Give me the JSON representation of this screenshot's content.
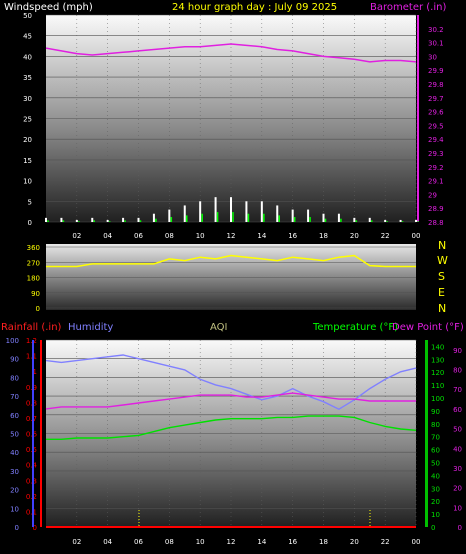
{
  "header": {
    "windspeed_label": "Windspeed (mph)",
    "title": "24 hour graph day : July 09 2025",
    "barometer_label": "Barometer (.in)"
  },
  "bottom_header": {
    "rainfall_label": "Rainfall (.in)",
    "humidity_label": "Humidity",
    "aqi_label": "AQI",
    "temperature_label": "Temperature (°F)",
    "dewpoint_label": "Dew Point (°F)"
  },
  "direction_labels": [
    "N",
    "W",
    "S",
    "E",
    "N"
  ],
  "x_ticks": [
    "02",
    "04",
    "06",
    "08",
    "10",
    "12",
    "14",
    "16",
    "18",
    "20",
    "22",
    "00"
  ],
  "colors": {
    "barometer": "#e020e0",
    "wind": "#ffffff",
    "gust": "#00ff00",
    "direction": "#ffff00",
    "humidity": "#8080ff",
    "temperature": "#00e000",
    "dewpoint": "#e020e0",
    "rainfall": "#ff0000",
    "title": "#ffff00"
  },
  "chart_data": [
    {
      "type": "line",
      "title": "24 hour graph day : July 09 2025",
      "hours": [
        0,
        1,
        2,
        3,
        4,
        5,
        6,
        7,
        8,
        9,
        10,
        11,
        12,
        13,
        14,
        15,
        16,
        17,
        18,
        19,
        20,
        21,
        22,
        23,
        24
      ],
      "windspeed": {
        "name": "Windspeed (mph)",
        "ylim": [
          0,
          50
        ],
        "ticks": [
          0,
          5,
          10,
          15,
          20,
          25,
          30,
          35,
          40,
          45,
          50
        ],
        "values": [
          1,
          1,
          0.5,
          1,
          0.5,
          1,
          1,
          2,
          3,
          4,
          5,
          6,
          6,
          5,
          5,
          4,
          3,
          3,
          2,
          2,
          1,
          1,
          0.5,
          0.5,
          0.5
        ]
      },
      "barometer": {
        "name": "Barometer (.in)",
        "ylim": [
          28.8,
          30.3
        ],
        "ticks": [
          "28.8",
          "28.9",
          "29",
          "29.1",
          "29.2",
          "29.3",
          "29.4",
          "29.5",
          "29.6",
          "29.7",
          "29.8",
          "29.9",
          "30",
          "30.1",
          "30.2"
        ],
        "values": [
          30.06,
          30.04,
          30.02,
          30.01,
          30.02,
          30.03,
          30.04,
          30.05,
          30.06,
          30.07,
          30.07,
          30.08,
          30.09,
          30.08,
          30.07,
          30.05,
          30.04,
          30.02,
          30.0,
          29.99,
          29.98,
          29.96,
          29.97,
          29.97,
          29.96
        ]
      }
    },
    {
      "type": "line",
      "name": "Wind direction",
      "ylim": [
        0,
        360
      ],
      "ticks": [
        0,
        90,
        180,
        270,
        360
      ],
      "hours": [
        0,
        1,
        2,
        3,
        4,
        5,
        6,
        7,
        8,
        9,
        10,
        11,
        12,
        13,
        14,
        15,
        16,
        17,
        18,
        19,
        20,
        21,
        22,
        23,
        24
      ],
      "values": [
        245,
        245,
        245,
        260,
        260,
        260,
        260,
        260,
        290,
        280,
        300,
        290,
        310,
        300,
        290,
        280,
        300,
        290,
        280,
        300,
        310,
        250,
        245,
        245,
        245
      ]
    },
    {
      "type": "line",
      "hours": [
        0,
        1,
        2,
        3,
        4,
        5,
        6,
        7,
        8,
        9,
        10,
        11,
        12,
        13,
        14,
        15,
        16,
        17,
        18,
        19,
        20,
        21,
        22,
        23,
        24
      ],
      "humidity": {
        "name": "Humidity",
        "ylim": [
          0,
          100
        ],
        "ticks": [
          0,
          10,
          20,
          30,
          40,
          50,
          60,
          70,
          80,
          90,
          100
        ],
        "values": [
          89,
          88,
          89,
          90,
          91,
          92,
          90,
          88,
          86,
          84,
          79,
          76,
          74,
          71,
          68,
          70,
          74,
          70,
          67,
          63,
          68,
          74,
          79,
          83,
          85
        ]
      },
      "temperature": {
        "name": "Temperature (°F)",
        "ylim": [
          0,
          145
        ],
        "ticks": [
          0,
          10,
          20,
          30,
          40,
          50,
          60,
          70,
          80,
          90,
          100,
          110,
          120,
          130,
          140
        ],
        "values": [
          68,
          68,
          69,
          69,
          69,
          70,
          71,
          74,
          77,
          79,
          81,
          83,
          84,
          84,
          84,
          85,
          85,
          86,
          86,
          86,
          85,
          81,
          78,
          76,
          75
        ]
      },
      "dewpoint": {
        "name": "Dew Point (°F)",
        "ylim": [
          0,
          95
        ],
        "ticks": [
          0,
          10,
          20,
          30,
          40,
          50,
          60,
          70,
          80,
          90
        ],
        "values": [
          60,
          61,
          61,
          61,
          61,
          62,
          63,
          64,
          65,
          66,
          67,
          67,
          67,
          66,
          66,
          67,
          68,
          67,
          66,
          65,
          65,
          64,
          64,
          64,
          64
        ]
      },
      "rainfall": {
        "name": "Rainfall (.in)",
        "ylim": [
          0,
          1.2
        ],
        "ticks": [
          "0",
          "0.1",
          "0.2",
          "0.3",
          "0.4",
          "0.5",
          "0.6",
          "0.7",
          "0.8",
          "0.9",
          "1",
          "1.1",
          "1.2"
        ],
        "values": [
          0,
          0,
          0,
          0,
          0,
          0,
          0,
          0,
          0,
          0,
          0,
          0,
          0,
          0,
          0,
          0,
          0,
          0,
          0,
          0,
          0,
          0,
          0,
          0,
          0
        ]
      },
      "aqi": {
        "name": "AQI"
      }
    }
  ]
}
